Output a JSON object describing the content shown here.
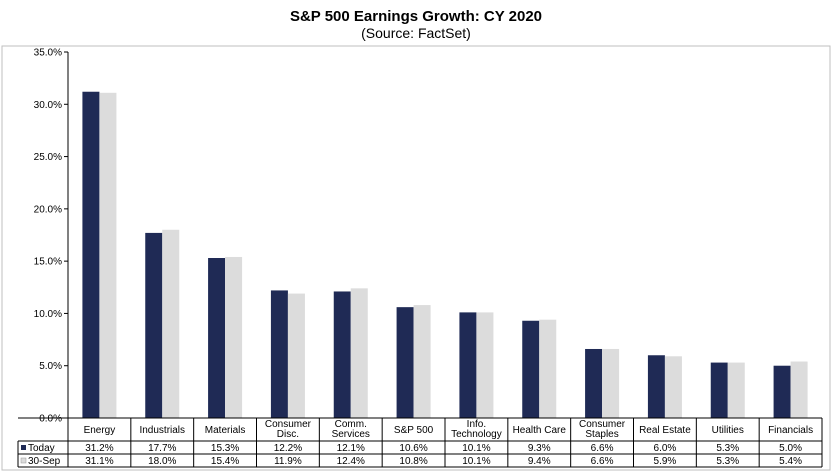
{
  "chart_data": {
    "type": "bar",
    "title": "S&P 500 Earnings Growth: CY 2020",
    "subtitle": "(Source: FactSet)",
    "ylim": [
      0,
      35
    ],
    "yticks": [
      "0.0%",
      "5.0%",
      "10.0%",
      "15.0%",
      "20.0%",
      "25.0%",
      "30.0%",
      "35.0%"
    ],
    "categories": [
      [
        "Energy"
      ],
      [
        "Industrials"
      ],
      [
        "Materials"
      ],
      [
        "Consumer",
        "Disc."
      ],
      [
        "Comm.",
        "Services"
      ],
      [
        "S&P 500"
      ],
      [
        "Info.",
        "Technology"
      ],
      [
        "Health Care"
      ],
      [
        "Consumer",
        "Staples"
      ],
      [
        "Real Estate"
      ],
      [
        "Utilities"
      ],
      [
        "Financials"
      ]
    ],
    "series": [
      {
        "name": "Today",
        "color": "#1f2a55",
        "values": [
          31.2,
          17.7,
          15.3,
          12.2,
          12.1,
          10.6,
          10.1,
          9.3,
          6.6,
          6.0,
          5.3,
          5.0
        ],
        "labels": [
          "31.2%",
          "17.7%",
          "15.3%",
          "12.2%",
          "12.1%",
          "10.6%",
          "10.1%",
          "9.3%",
          "6.6%",
          "6.0%",
          "5.3%",
          "5.0%"
        ]
      },
      {
        "name": "30-Sep",
        "color": "#dcdcdc",
        "values": [
          31.1,
          18.0,
          15.4,
          11.9,
          12.4,
          10.8,
          10.1,
          9.4,
          6.6,
          5.9,
          5.3,
          5.4
        ],
        "labels": [
          "31.1%",
          "18.0%",
          "15.4%",
          "11.9%",
          "12.4%",
          "10.8%",
          "10.1%",
          "9.4%",
          "6.6%",
          "5.9%",
          "5.3%",
          "5.4%"
        ]
      }
    ],
    "grid": false,
    "legend": "data-table"
  }
}
